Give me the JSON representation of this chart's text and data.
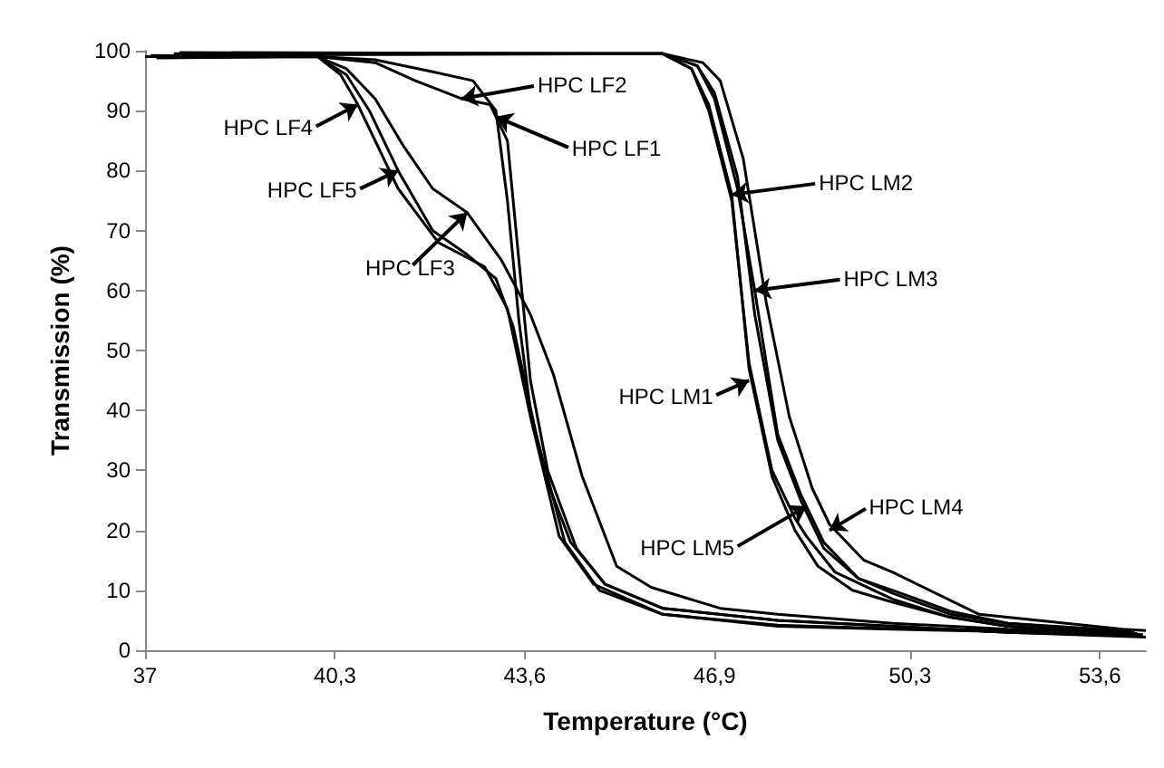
{
  "chart_data": {
    "type": "line",
    "xlabel": "Temperature (°C)",
    "ylabel": "Transmission (%)",
    "xlim": [
      37,
      54.4
    ],
    "ylim": [
      0,
      100
    ],
    "xticks": [
      37,
      {
        "value": 40.3,
        "label": "40,3"
      },
      {
        "value": 43.6,
        "label": "43,6"
      },
      {
        "value": 46.9,
        "label": "46,9"
      },
      {
        "value": 50.3,
        "label": "50,3"
      },
      {
        "value": 53.6,
        "label": "53,6"
      }
    ],
    "yticks": [
      0,
      10,
      20,
      30,
      40,
      50,
      60,
      70,
      80,
      90,
      100
    ],
    "grid": false,
    "marker": "none",
    "line_style": "solid",
    "series": [
      {
        "color": "#000000",
        "x": [
          37,
          40,
          41,
          42,
          42.7,
          43.1,
          43.3,
          43.5,
          43.7,
          44,
          44.4,
          45,
          46,
          48,
          50,
          52,
          54.4
        ],
        "values": [
          99,
          99,
          98.5,
          96.5,
          95,
          90,
          75,
          55,
          40,
          28,
          18,
          11,
          7,
          5,
          4,
          3,
          2.2
        ]
      },
      {
        "color": "#000000",
        "x": [
          37.1,
          40,
          41,
          41.7,
          42.5,
          43,
          43.3,
          43.5,
          43.7,
          44,
          44.5,
          45,
          46,
          48,
          50,
          52,
          54.3
        ],
        "values": [
          99.2,
          99,
          98,
          95,
          92,
          91,
          85,
          65,
          45,
          30,
          17,
          11,
          7,
          5,
          4,
          3,
          2.5
        ]
      },
      {
        "color": "#000000",
        "x": [
          37.2,
          40,
          40.5,
          41,
          41.5,
          42,
          42.6,
          43.2,
          43.7,
          44.1,
          44.6,
          45.2,
          45.8,
          47,
          48,
          50,
          52,
          54.2
        ],
        "values": [
          98.8,
          99,
          97,
          92,
          84,
          77,
          73,
          65,
          56,
          46,
          29,
          14,
          10.5,
          7,
          6,
          4.5,
          3.5,
          2.9
        ]
      },
      {
        "color": "#000000",
        "x": [
          37.3,
          40,
          40.4,
          40.7,
          41.4,
          42.1,
          42.9,
          43.3,
          43.7,
          44.2,
          44.8,
          46,
          48,
          50,
          54.1
        ],
        "values": [
          99.1,
          99,
          96,
          91,
          77,
          68,
          64,
          57,
          39,
          19,
          11,
          6,
          4,
          3.5,
          2.7
        ]
      },
      {
        "color": "#000000",
        "x": [
          37.4,
          40,
          40.5,
          40.9,
          41.4,
          42,
          42.6,
          43.1,
          43.4,
          43.8,
          44.3,
          44.9,
          46,
          48,
          50,
          54
        ],
        "values": [
          98.9,
          99,
          96,
          90,
          80,
          70,
          66,
          62,
          54,
          36,
          18,
          10,
          6,
          4.2,
          3.6,
          3.1
        ]
      },
      {
        "color": "#000000",
        "x": [
          37.5,
          46,
          46.5,
          46.8,
          47.2,
          47.5,
          47.9,
          48.3,
          48.7,
          49.3,
          50,
          51,
          52,
          54.35
        ],
        "values": [
          99.5,
          99.5,
          97,
          91,
          76,
          47,
          29,
          20,
          14,
          10,
          8,
          5.5,
          4,
          2.6
        ]
      },
      {
        "color": "#000000",
        "x": [
          37.6,
          46,
          46.6,
          46.9,
          47.3,
          47.6,
          48,
          48.4,
          48.8,
          49.4,
          50,
          51,
          52,
          54.25
        ],
        "values": [
          99.7,
          99.5,
          97.5,
          93,
          79,
          56,
          35,
          25,
          17,
          12,
          10,
          6.5,
          4.5,
          2.8
        ]
      },
      {
        "color": "#000000",
        "x": [
          37.7,
          46,
          46.6,
          46.9,
          47.3,
          47.6,
          48,
          48.4,
          48.8,
          49.4,
          50,
          51,
          52,
          54.15
        ],
        "values": [
          99.4,
          99.5,
          97.5,
          92,
          77,
          60,
          36,
          26,
          18,
          12,
          9.5,
          6,
          4.5,
          3.2
        ]
      },
      {
        "color": "#000000",
        "x": [
          37.8,
          46,
          46.7,
          47,
          47.4,
          47.8,
          48.2,
          48.6,
          48.9,
          49.5,
          50,
          51.5,
          54,
          54.4
        ],
        "values": [
          99.6,
          99.5,
          98,
          95,
          82,
          58,
          39,
          27,
          21,
          15,
          13,
          6,
          3.5,
          3.3
        ]
      },
      {
        "color": "#000000",
        "x": [
          37.9,
          46,
          46.5,
          46.8,
          47.2,
          47.5,
          47.9,
          48.3,
          48.5,
          49,
          50,
          51,
          52,
          54.05
        ],
        "values": [
          99.3,
          99.5,
          97,
          90,
          75,
          48,
          30,
          22,
          19,
          13,
          8.5,
          5.5,
          4,
          2.4
        ]
      }
    ],
    "annotations": [
      {
        "text": "HPC LF2",
        "x": 42.5,
        "y": 92
      },
      {
        "text": "HPC LF1",
        "x": 43.1,
        "y": 89
      },
      {
        "text": "HPC LF4",
        "x": 40.7,
        "y": 91
      },
      {
        "text": "HPC LF5",
        "x": 41.4,
        "y": 80
      },
      {
        "text": "HPC LF3",
        "x": 42.6,
        "y": 73
      },
      {
        "text": "HPC LM2",
        "x": 47.2,
        "y": 76
      },
      {
        "text": "HPC LM3",
        "x": 47.6,
        "y": 60
      },
      {
        "text": "HPC LM1",
        "x": 47.5,
        "y": 45
      },
      {
        "text": "HPC LM5",
        "x": 48.5,
        "y": 24
      },
      {
        "text": "HPC LM4",
        "x": 48.9,
        "y": 20
      }
    ]
  }
}
